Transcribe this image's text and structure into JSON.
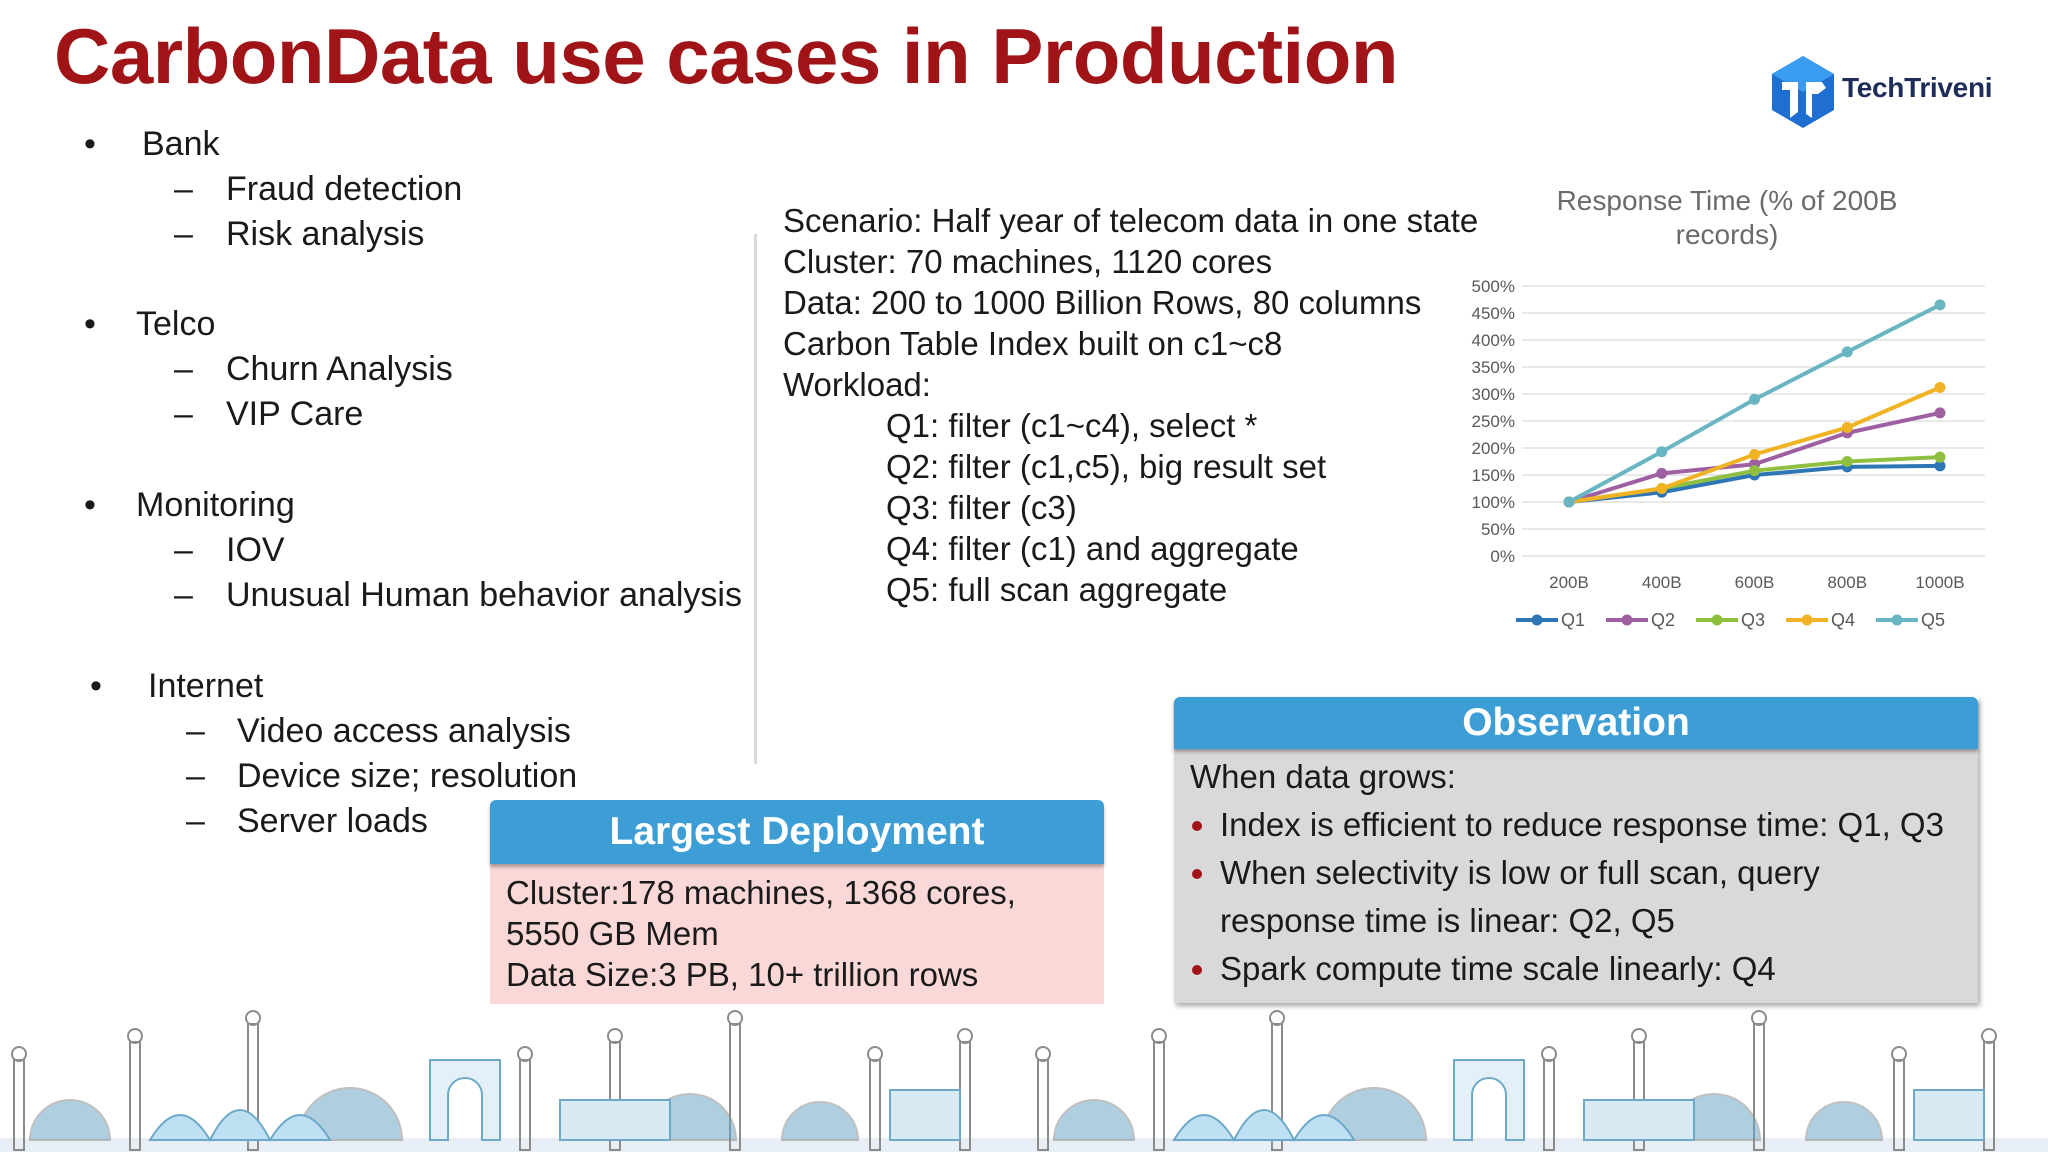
{
  "title": "CarbonData use cases in Production",
  "logo": {
    "text": "TechTriveni"
  },
  "use_cases": [
    {
      "label": "Bank",
      "items": [
        "Fraud detection",
        "Risk analysis"
      ]
    },
    {
      "label": "Telco",
      "items": [
        "Churn Analysis",
        "VIP Care"
      ]
    },
    {
      "label": "Monitoring",
      "items": [
        "IOV",
        "Unusual Human behavior analysis"
      ]
    },
    {
      "label": "Internet",
      "items": [
        "Video access analysis",
        "Device size; resolution",
        "Server loads"
      ]
    }
  ],
  "bullet_char": "•",
  "dash_char": "–",
  "scenario": {
    "lines": [
      "Scenario: Half year of telecom data in one state",
      "Cluster: 70 machines, 1120 cores",
      "Data: 200 to 1000 Billion Rows, 80 columns",
      "Carbon Table Index built on c1~c8",
      "Workload:"
    ],
    "queries": [
      "Q1: filter (c1~c4), select *",
      "Q2: filter (c1,c5), big result set",
      "Q3: filter (c3)",
      "Q4: filter (c1) and aggregate",
      "Q5: full scan aggregate"
    ]
  },
  "chart_data": {
    "type": "line",
    "title": "Response Time (% of 200B records)",
    "title_lines": [
      "Response Time (% of 200B",
      "records)"
    ],
    "categories": [
      "200B",
      "400B",
      "600B",
      "800B",
      "1000B"
    ],
    "y_ticks": [
      "0%",
      "50%",
      "100%",
      "150%",
      "200%",
      "250%",
      "300%",
      "350%",
      "400%",
      "450%",
      "500%"
    ],
    "ylim": [
      0,
      500
    ],
    "grid": true,
    "legend": "bottom",
    "series": [
      {
        "name": "Q1",
        "color": "#2e75b6",
        "values": [
          100,
          118,
          150,
          165,
          167
        ]
      },
      {
        "name": "Q2",
        "color": "#9e5fa3",
        "values": [
          100,
          153,
          170,
          228,
          265
        ]
      },
      {
        "name": "Q3",
        "color": "#8fbf3f",
        "values": [
          100,
          125,
          158,
          175,
          183
        ]
      },
      {
        "name": "Q4",
        "color": "#f0b323",
        "values": [
          100,
          125,
          188,
          238,
          312
        ]
      },
      {
        "name": "Q5",
        "color": "#6ab5c2",
        "values": [
          100,
          193,
          290,
          378,
          465
        ]
      }
    ]
  },
  "largest_deployment": {
    "header": "Largest Deployment",
    "lines": [
      "Cluster:178 machines, 1368 cores,",
      "5550 GB Mem",
      "Data Size:3 PB, 10+ trillion rows"
    ]
  },
  "observation": {
    "header": "Observation",
    "intro": "When data grows:",
    "bullets": [
      [
        "Index is efficient to reduce response time: Q1, Q3"
      ],
      [
        "When selectivity is low or full scan, query",
        "response time is linear: Q2, Q5"
      ],
      [
        "Spark compute time scale linearly: Q4"
      ]
    ]
  },
  "colors": {
    "title": "#a01418",
    "box_header": "#3d9ed6",
    "deploy_body": "#fbd8d8",
    "obs_body": "#d9d9d9",
    "skyline_primary": "#6ea9c9",
    "skyline_secondary": "#8c8c8c"
  }
}
